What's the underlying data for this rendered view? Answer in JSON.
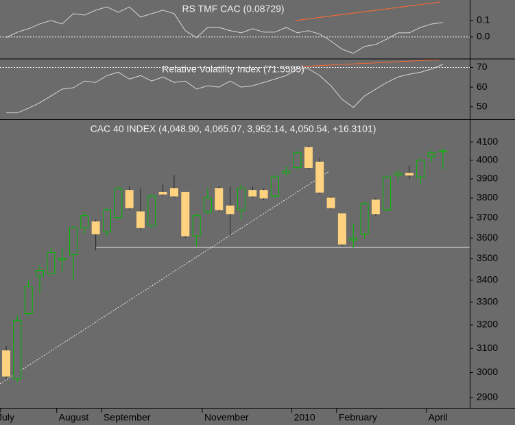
{
  "chart_data": [
    {
      "type": "line",
      "title": "RS TMF CAC (0.08729)",
      "color": "#d8d8d8",
      "values": [
        -0.004,
        0.029,
        0.05,
        0.079,
        0.1,
        0.079,
        0.142,
        0.133,
        0.163,
        0.183,
        0.15,
        0.183,
        0.121,
        0.142,
        0.163,
        0.142,
        0.038,
        -0.004,
        0.058,
        0.058,
        0.038,
        0.025,
        0.05,
        0.029,
        0.029,
        0.058,
        0.025,
        0.038,
        0.017,
        -0.025,
        -0.075,
        -0.1,
        -0.058,
        -0.046,
        -0.013,
        0.025,
        0.025,
        0.058,
        0.079,
        0.08729
      ],
      "ylim": [
        -0.13,
        0.225
      ],
      "yticks": [
        0.1,
        {
          "value": 0,
          "label": "0.0"
        }
      ],
      "hline": 0
    },
    {
      "type": "line",
      "title": "Relative Volatility Index (71.5585)",
      "color": "#d8d8d8",
      "values": [
        46.9,
        46.9,
        49.3,
        52.1,
        55.5,
        59.0,
        59.7,
        63.1,
        62.4,
        65.9,
        67.6,
        64.1,
        65.9,
        63.1,
        65.2,
        62.4,
        63.1,
        59.0,
        60.7,
        60.0,
        63.1,
        60.0,
        60.7,
        62.4,
        64.1,
        65.9,
        69.3,
        69.3,
        65.9,
        60.7,
        53.8,
        49.7,
        55.5,
        59.0,
        62.4,
        65.2,
        66.6,
        67.6,
        69.3,
        71.5585
      ],
      "ylim": [
        44,
        74
      ],
      "yticks": [
        50,
        60,
        70
      ],
      "hline": 70
    },
    {
      "type": "candlestick",
      "title": "CAC 40 INDEX (4,048.90, 4,065.07, 3,952.14, 4,050.54, +16.3101)",
      "up_color": "#00c000",
      "down_color": "#ffd27f",
      "log_scale": true,
      "categories": [
        "July",
        null,
        null,
        null,
        null,
        "August",
        null,
        null,
        null,
        "September",
        null,
        null,
        null,
        null,
        null,
        null,
        null,
        null,
        "November",
        null,
        null,
        null,
        null,
        null,
        null,
        null,
        "2010",
        null,
        null,
        null,
        "February",
        null,
        null,
        null,
        null,
        null,
        null,
        null,
        "April",
        null
      ],
      "open": [
        3090,
        2975,
        3250,
        3420,
        3430,
        3500,
        3520,
        3650,
        3680,
        3630,
        3700,
        3840,
        3730,
        3660,
        3830,
        3850,
        3830,
        3610,
        3730,
        3850,
        3760,
        3740,
        3840,
        3840,
        3810,
        3930,
        3960,
        4070,
        3990,
        3800,
        3720,
        3590,
        3620,
        3790,
        3740,
        3920,
        3930,
        3910,
        4020,
        4048.9
      ],
      "high": [
        3110,
        3240,
        3400,
        3470,
        3550,
        3550,
        3660,
        3730,
        3690,
        3750,
        3860,
        3860,
        3850,
        3820,
        3870,
        3920,
        3830,
        3720,
        3850,
        3860,
        3860,
        3870,
        3860,
        3850,
        3920,
        3970,
        4050,
        4080,
        4010,
        3810,
        3720,
        3670,
        3780,
        3800,
        3920,
        3950,
        3970,
        4010,
        4050,
        4065.07
      ],
      "low": [
        2975,
        2960,
        3240,
        3340,
        3420,
        3440,
        3400,
        3620,
        3540,
        3610,
        3690,
        3740,
        3640,
        3650,
        3810,
        3800,
        3600,
        3560,
        3720,
        3730,
        3610,
        3690,
        3800,
        3790,
        3800,
        3920,
        3950,
        3950,
        3820,
        3740,
        3560,
        3550,
        3600,
        3710,
        3730,
        3880,
        3900,
        3870,
        3990,
        3952.14
      ],
      "close": [
        2985,
        3220,
        3370,
        3445,
        3530,
        3500,
        3650,
        3710,
        3620,
        3740,
        3850,
        3750,
        3650,
        3810,
        3820,
        3810,
        3610,
        3710,
        3800,
        3740,
        3720,
        3850,
        3810,
        3800,
        3910,
        3940,
        4040,
        3960,
        3830,
        3750,
        3570,
        3600,
        3770,
        3720,
        3910,
        3930,
        3920,
        4000,
        4040,
        4050.54
      ],
      "ylim": [
        2860,
        4220
      ],
      "yticks": [
        2900,
        3000,
        3100,
        3200,
        3300,
        3400,
        3500,
        3600,
        3700,
        3800,
        3900,
        4000,
        4100
      ],
      "hline": 3555
    }
  ]
}
